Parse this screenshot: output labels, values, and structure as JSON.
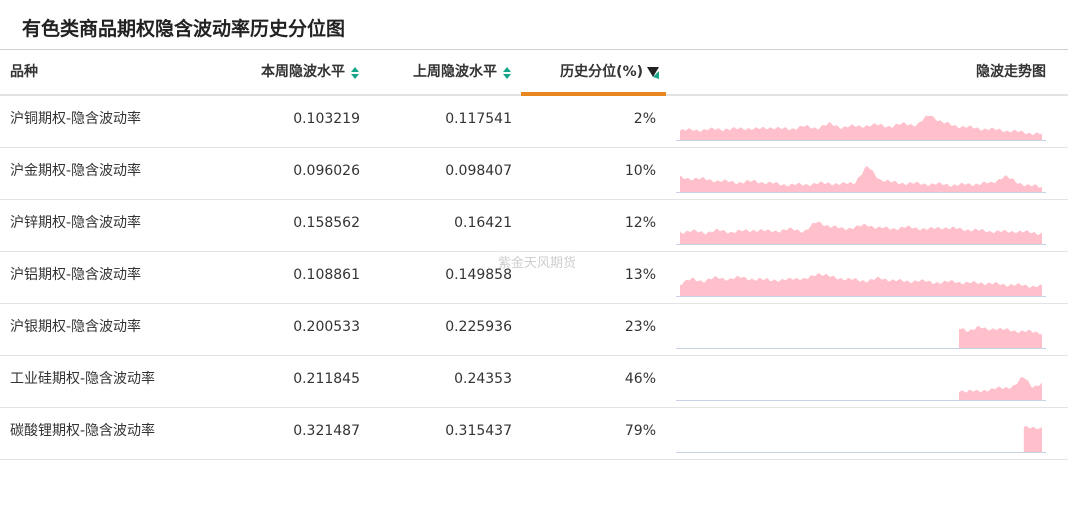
{
  "page": {
    "title": "有色类商品期权隐含波动率历史分位图",
    "watermark": "紫金天风期货"
  },
  "table": {
    "headers": {
      "name": "品种",
      "current": "本周隐波水平",
      "previous": "上周隐波水平",
      "percentile": "历史分位(%)",
      "trend": "隐波走势图"
    },
    "sorted_column": "percentile",
    "sparkline_color": "#ffc0cb",
    "rows": [
      {
        "name": "沪铜期权-隐含波动率",
        "current": "0.103219",
        "previous": "0.117541",
        "percentile": "2%",
        "spark": {
          "start": 0.0,
          "levels": [
            0.28,
            0.33,
            0.3,
            0.36,
            0.32,
            0.38,
            0.33,
            0.4,
            0.35,
            0.36,
            0.42,
            0.38,
            0.5,
            0.4,
            0.43,
            0.45,
            0.47,
            0.42,
            0.52,
            0.46,
            0.8,
            0.55,
            0.45,
            0.4,
            0.36,
            0.33,
            0.3,
            0.26,
            0.22,
            0.18
          ]
        }
      },
      {
        "name": "沪金期权-隐含波动率",
        "current": "0.096026",
        "previous": "0.098407",
        "percentile": "10%",
        "spark": {
          "start": 0.0,
          "levels": [
            0.45,
            0.42,
            0.4,
            0.35,
            0.32,
            0.3,
            0.34,
            0.28,
            0.25,
            0.22,
            0.24,
            0.26,
            0.28,
            0.24,
            0.3,
            0.8,
            0.4,
            0.3,
            0.28,
            0.26,
            0.25,
            0.24,
            0.22,
            0.24,
            0.26,
            0.28,
            0.5,
            0.3,
            0.2,
            0.15
          ]
        }
      },
      {
        "name": "沪锌期权-隐含波动率",
        "current": "0.158562",
        "previous": "0.16421",
        "percentile": "12%",
        "spark": {
          "start": 0.0,
          "levels": [
            0.38,
            0.4,
            0.36,
            0.42,
            0.38,
            0.4,
            0.44,
            0.4,
            0.42,
            0.46,
            0.4,
            0.7,
            0.55,
            0.48,
            0.52,
            0.6,
            0.5,
            0.48,
            0.52,
            0.5,
            0.46,
            0.52,
            0.48,
            0.45,
            0.42,
            0.4,
            0.38,
            0.4,
            0.36,
            0.34
          ]
        }
      },
      {
        "name": "沪铝期权-隐含波动率",
        "current": "0.108861",
        "previous": "0.149858",
        "percentile": "13%",
        "spark": {
          "start": 0.0,
          "levels": [
            0.35,
            0.55,
            0.45,
            0.6,
            0.5,
            0.62,
            0.48,
            0.55,
            0.45,
            0.58,
            0.5,
            0.72,
            0.6,
            0.55,
            0.5,
            0.48,
            0.55,
            0.5,
            0.45,
            0.48,
            0.44,
            0.42,
            0.46,
            0.4,
            0.42,
            0.38,
            0.36,
            0.34,
            0.32,
            0.3
          ]
        }
      },
      {
        "name": "沪银期权-隐含波动率",
        "current": "0.200533",
        "previous": "0.225936",
        "percentile": "23%",
        "spark": {
          "start": 0.775,
          "levels": [
            0.6,
            0.55,
            0.65,
            0.58,
            0.62,
            0.56,
            0.54,
            0.52,
            0.5,
            0.48
          ]
        }
      },
      {
        "name": "工业硅期权-隐含波动率",
        "current": "0.211845",
        "previous": "0.24353",
        "percentile": "46%",
        "spark": {
          "start": 0.775,
          "levels": [
            0.3,
            0.28,
            0.26,
            0.32,
            0.35,
            0.38,
            0.45,
            0.72,
            0.42,
            0.5
          ]
        }
      },
      {
        "name": "碳酸锂期权-隐含波动率",
        "current": "0.321487",
        "previous": "0.315437",
        "percentile": "79%",
        "spark": {
          "start": 0.955,
          "levels": [
            0.8,
            0.72,
            0.76
          ]
        }
      }
    ]
  }
}
